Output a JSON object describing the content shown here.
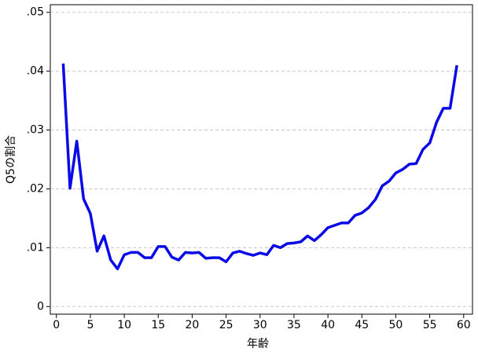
{
  "chart_data": {
    "type": "line",
    "x_label": "年齢",
    "y_label": "Q5の割合",
    "x": [
      1,
      2,
      3,
      4,
      5,
      6,
      7,
      8,
      9,
      10,
      11,
      12,
      13,
      14,
      15,
      16,
      17,
      18,
      19,
      20,
      21,
      22,
      23,
      24,
      25,
      26,
      27,
      28,
      29,
      30,
      31,
      32,
      33,
      34,
      35,
      36,
      37,
      38,
      39,
      40,
      41,
      42,
      43,
      44,
      45,
      46,
      47,
      48,
      49,
      50,
      51,
      52,
      53,
      54,
      55,
      56,
      57,
      58,
      59
    ],
    "series": [
      {
        "color": "#0a0ae6",
        "values": [
          0.0413,
          0.0201,
          0.0281,
          0.0183,
          0.0158,
          0.0094,
          0.012,
          0.0079,
          0.0064,
          0.0088,
          0.0092,
          0.0092,
          0.0083,
          0.0083,
          0.0102,
          0.0102,
          0.0084,
          0.0079,
          0.0092,
          0.0091,
          0.0092,
          0.0082,
          0.0083,
          0.0083,
          0.0076,
          0.0091,
          0.0094,
          0.009,
          0.0087,
          0.0091,
          0.0088,
          0.0104,
          0.01,
          0.0107,
          0.0108,
          0.011,
          0.012,
          0.0112,
          0.0122,
          0.0134,
          0.0138,
          0.0142,
          0.0142,
          0.0155,
          0.0159,
          0.0168,
          0.0182,
          0.0205,
          0.0213,
          0.0227,
          0.0233,
          0.0242,
          0.0243,
          0.0267,
          0.0278,
          0.0313,
          0.0337,
          0.0337,
          0.041
        ]
      }
    ],
    "xlim": [
      -0.9,
      61.3
    ],
    "xticks": [
      0,
      5,
      10,
      15,
      20,
      25,
      30,
      35,
      40,
      45,
      50,
      55,
      60
    ],
    "ylim": [
      -0.0013,
      0.0513
    ],
    "yticks": [
      0,
      {
        "value": 0.01,
        "label": ".01"
      },
      {
        "value": 0.02,
        "label": ".02"
      },
      {
        "value": 0.03,
        "label": ".03"
      },
      {
        "value": 0.04,
        "label": ".04"
      },
      {
        "value": 0.05,
        "label": ".05"
      }
    ],
    "grid": true
  }
}
